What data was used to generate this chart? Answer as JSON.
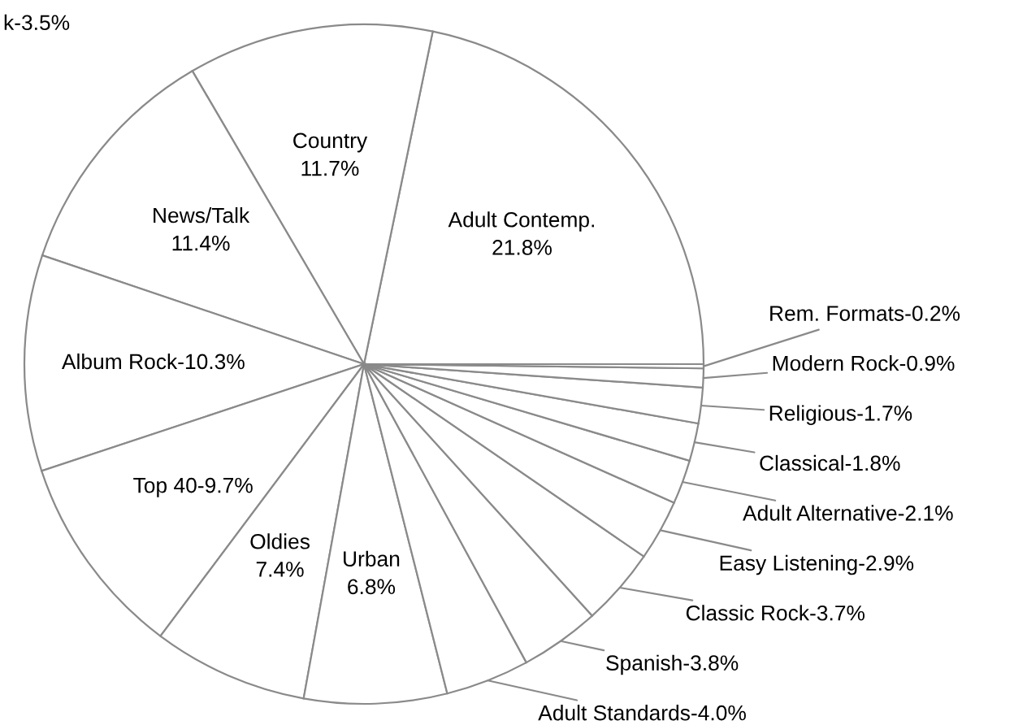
{
  "chart_data": {
    "type": "pie",
    "categories": [
      "Adult Contemp.\n21.8%",
      "Country\n11.7%",
      "News/Talk\n11.4%",
      "Album Rock-10.3%",
      "Top 40-9.7%",
      "Oldies\n7.4%",
      "Urban\n6.8%",
      "Adult Standards-4.0%",
      "Spanish-3.8%",
      "Classic Rock-3.7%",
      "Easy Listening-2.9%",
      "Adult Alternative-2.1%",
      "Classical-1.8%",
      "Religious-1.7%",
      "Modern Rock-0.9%",
      "Rem. Formats-0.2%"
    ],
    "values": [
      21.8,
      11.7,
      11.4,
      10.3,
      9.7,
      7.4,
      6.8,
      4.0,
      3.8,
      3.7,
      2.9,
      2.1,
      1.8,
      1.7,
      0.9,
      0.2
    ],
    "colors": [
      "#ffffff",
      "#ffffff",
      "#ffffff",
      "#ffffff",
      "#ffffff",
      "#ffffff",
      "#ffffff",
      "#ffffff",
      "#ffffff",
      "#ffffff",
      "#ffffff",
      "#ffffff",
      "#ffffff",
      "#ffffff",
      "#ffffff",
      "#ffffff"
    ],
    "annotations": [
      "k-3.5%"
    ]
  }
}
